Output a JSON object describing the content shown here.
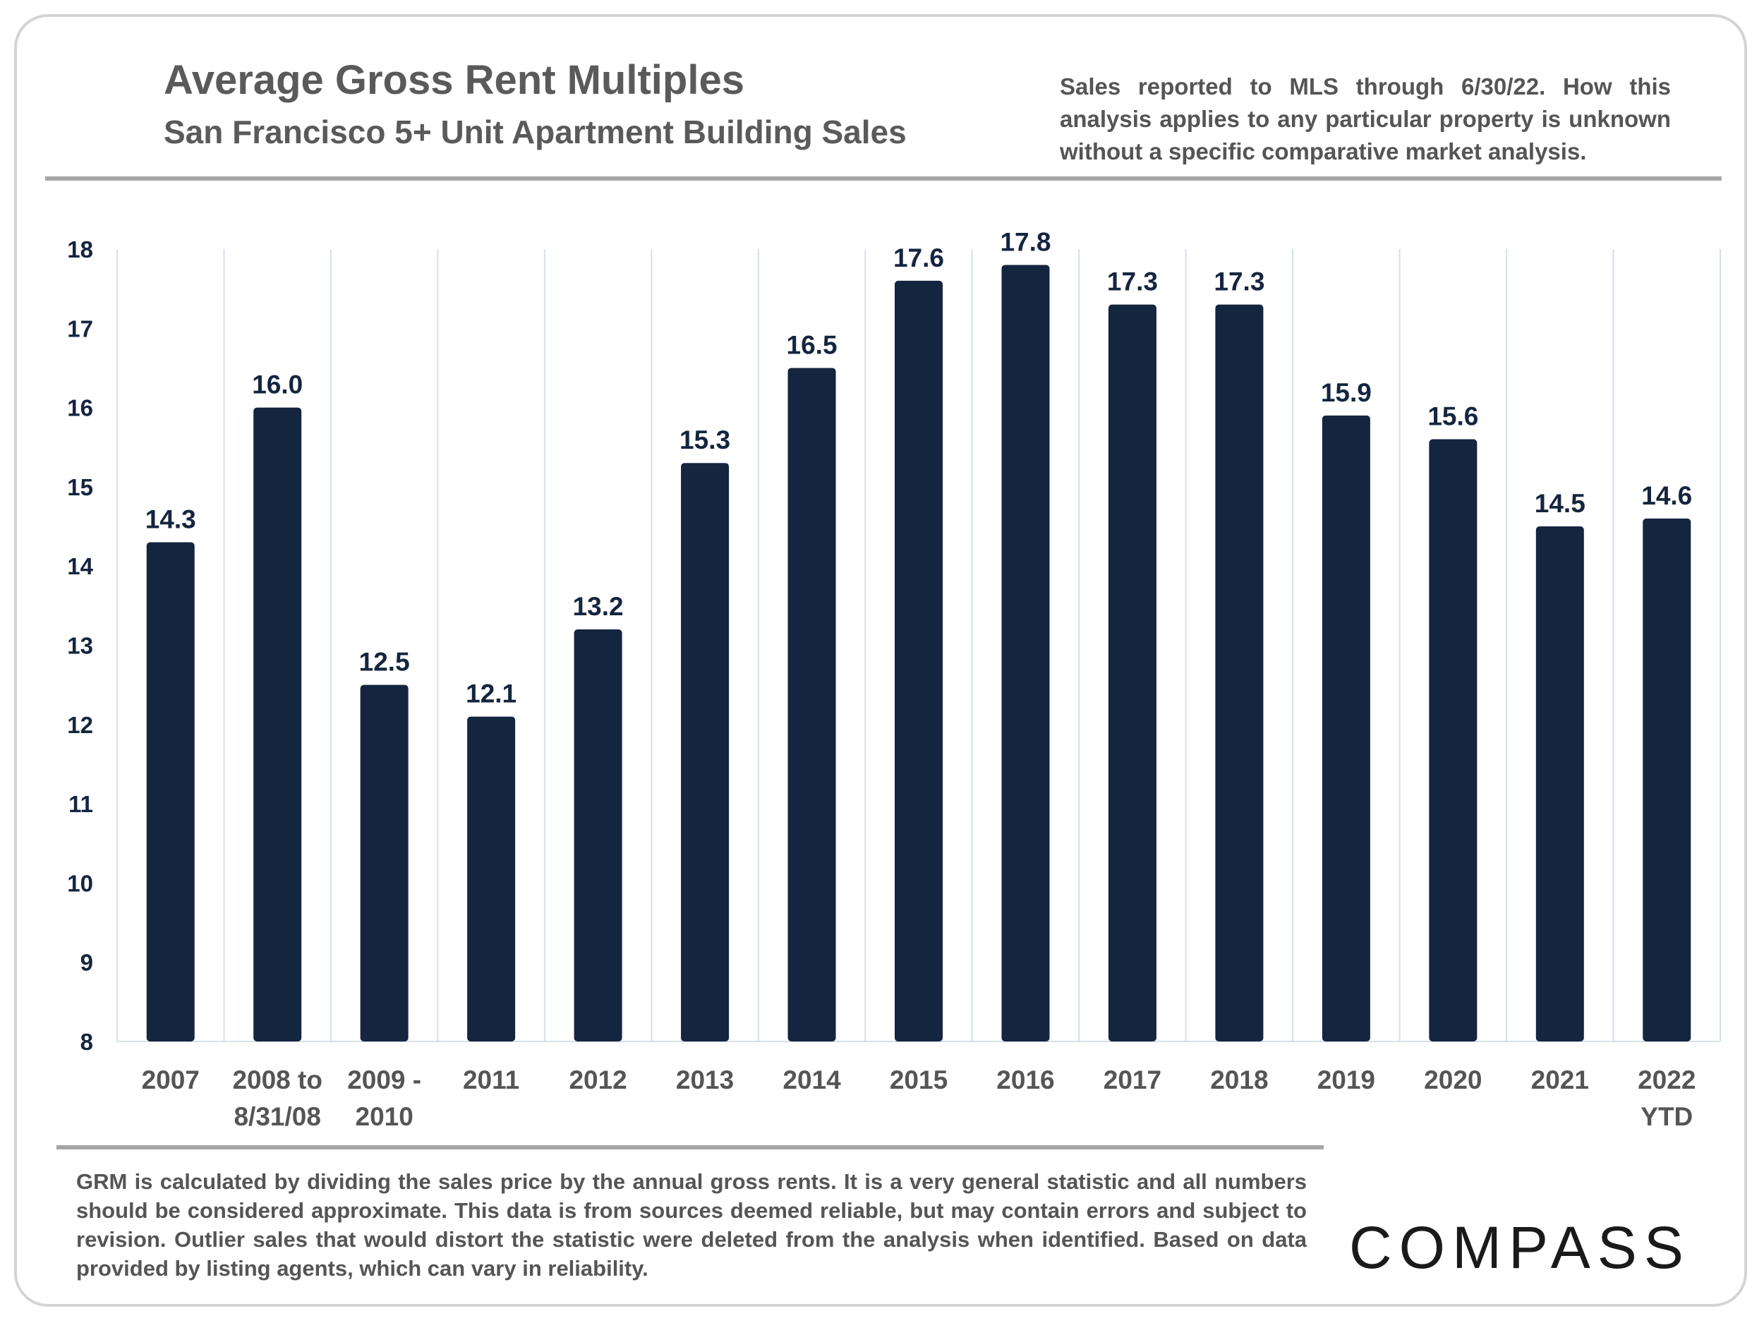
{
  "header": {
    "title": "Average Gross Rent Multiples",
    "subtitle": "San Francisco 5+ Unit Apartment Building Sales",
    "note": "Sales reported to MLS through 6/30/22. How this analysis applies to any particular property is unknown without a specific comparative market analysis."
  },
  "footer": {
    "text": "GRM is calculated by dividing the sales price by the annual gross rents. It is a very general statistic and all numbers should be considered approximate. This data is from sources deemed reliable, but may contain errors and subject to revision. Outlier sales that would distort the statistic were deleted from the analysis when identified. Based on data provided by listing agents, which can vary in reliability."
  },
  "logo": {
    "text": "COMPASS"
  },
  "colors": {
    "bar": "#14253f",
    "text": "#14253f",
    "grid": "#d6e0ea",
    "rule": "#a6a6a6"
  },
  "chart_data": {
    "type": "bar",
    "title": "Average Gross Rent Multiples",
    "subtitle": "San Francisco 5+ Unit Apartment Building Sales",
    "categories": [
      [
        "2007"
      ],
      [
        "2008 to",
        "8/31/08"
      ],
      [
        "2009 -",
        "2010"
      ],
      [
        "2011"
      ],
      [
        "2012"
      ],
      [
        "2013"
      ],
      [
        "2014"
      ],
      [
        "2015"
      ],
      [
        "2016"
      ],
      [
        "2017"
      ],
      [
        "2018"
      ],
      [
        "2019"
      ],
      [
        "2020"
      ],
      [
        "2021"
      ],
      [
        "2022",
        "YTD"
      ]
    ],
    "values": [
      14.3,
      16.0,
      12.5,
      12.1,
      13.2,
      15.3,
      16.5,
      17.6,
      17.8,
      17.3,
      17.3,
      15.9,
      15.6,
      14.5,
      14.6
    ],
    "labels": [
      "14.3",
      "16.0",
      "12.5",
      "12.1",
      "13.2",
      "15.3",
      "16.5",
      "17.6",
      "17.8",
      "17.3",
      "17.3",
      "15.9",
      "15.6",
      "14.5",
      "14.6"
    ],
    "ylim": [
      8,
      18
    ],
    "yticks": [
      8,
      9,
      10,
      11,
      12,
      13,
      14,
      15,
      16,
      17,
      18
    ],
    "grid": "vertical category separators",
    "legend": "none",
    "data_labels": true
  }
}
